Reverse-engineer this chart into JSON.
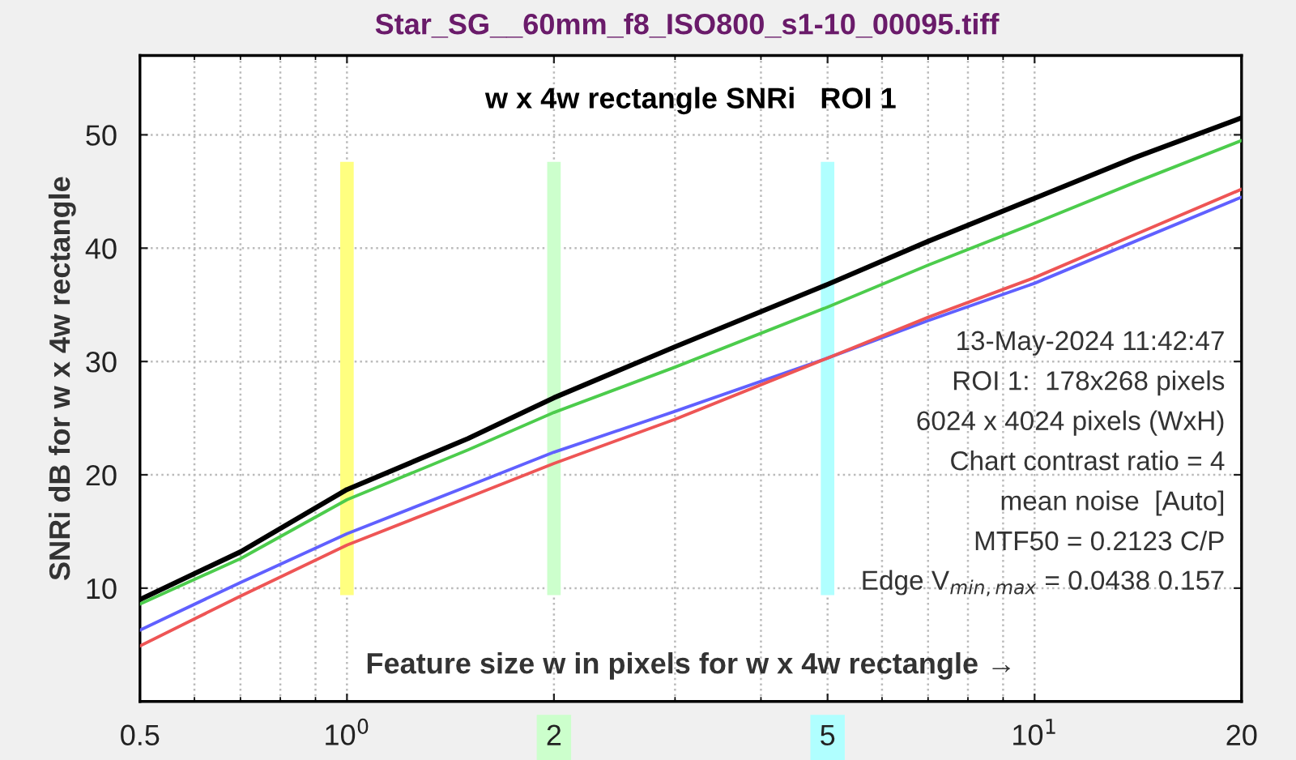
{
  "chart_data": {
    "type": "line",
    "title": "Star_SG__60mm_f8_ISO800_s1-10_00095.tiff",
    "subtitle": "w x 4w rectangle SNRi   ROI 1",
    "xlabel": "Feature size w in pixels for w x 4w rectangle →",
    "ylabel": "SNRi dB for w x 4w rectangle",
    "x": [
      0.5,
      0.7,
      1,
      1.5,
      2,
      3,
      5,
      7,
      10,
      14,
      20
    ],
    "series": [
      {
        "color": "#000000",
        "values": [
          9.0,
          13.2,
          18.7,
          23.2,
          26.8,
          31.3,
          36.8,
          40.6,
          44.4,
          48.0,
          51.5
        ]
      },
      {
        "color": "#4ccc4c",
        "values": [
          8.6,
          12.6,
          17.8,
          22.2,
          25.5,
          29.5,
          34.8,
          38.5,
          42.2,
          45.8,
          49.5
        ]
      },
      {
        "color": "#6060ff",
        "values": [
          6.3,
          10.5,
          14.8,
          19.0,
          22.0,
          25.6,
          30.3,
          33.6,
          36.9,
          40.6,
          44.5
        ]
      },
      {
        "color": "#ee5555",
        "values": [
          4.9,
          9.3,
          13.8,
          18.0,
          21.0,
          24.9,
          30.3,
          33.9,
          37.4,
          41.2,
          45.2
        ]
      }
    ],
    "log": "x",
    "xlim": [
      0.5,
      20
    ],
    "xticks": [
      0.5,
      {
        "value": 1,
        "label": "10$^{0}$"
      },
      2,
      5,
      {
        "value": 10,
        "label": "10$^{1}$"
      },
      20
    ],
    "ylim": [
      0,
      57
    ],
    "yticks": [
      10,
      20,
      30,
      40,
      50
    ],
    "ref_lines": [
      {
        "axis": "x",
        "value": 1,
        "color": "#ffff80"
      },
      {
        "axis": "x",
        "value": 2,
        "color": "#ccffcc"
      },
      {
        "axis": "x",
        "value": 5,
        "color": "#b0ffff"
      }
    ],
    "annotations": [
      "13-May-2024 11:42:47",
      "ROI 1:  178x268 pixels",
      "6024 x 4024 pixels (WxH)",
      "Chart contrast ratio = 4",
      "mean noise  [Auto]",
      "MTF50 = 0.2123 C/P",
      "Edge V$_{min,max}$ = 0.0438 0.157"
    ],
    "grid": true,
    "legend": false,
    "marker": "none",
    "line_style": "solid"
  }
}
